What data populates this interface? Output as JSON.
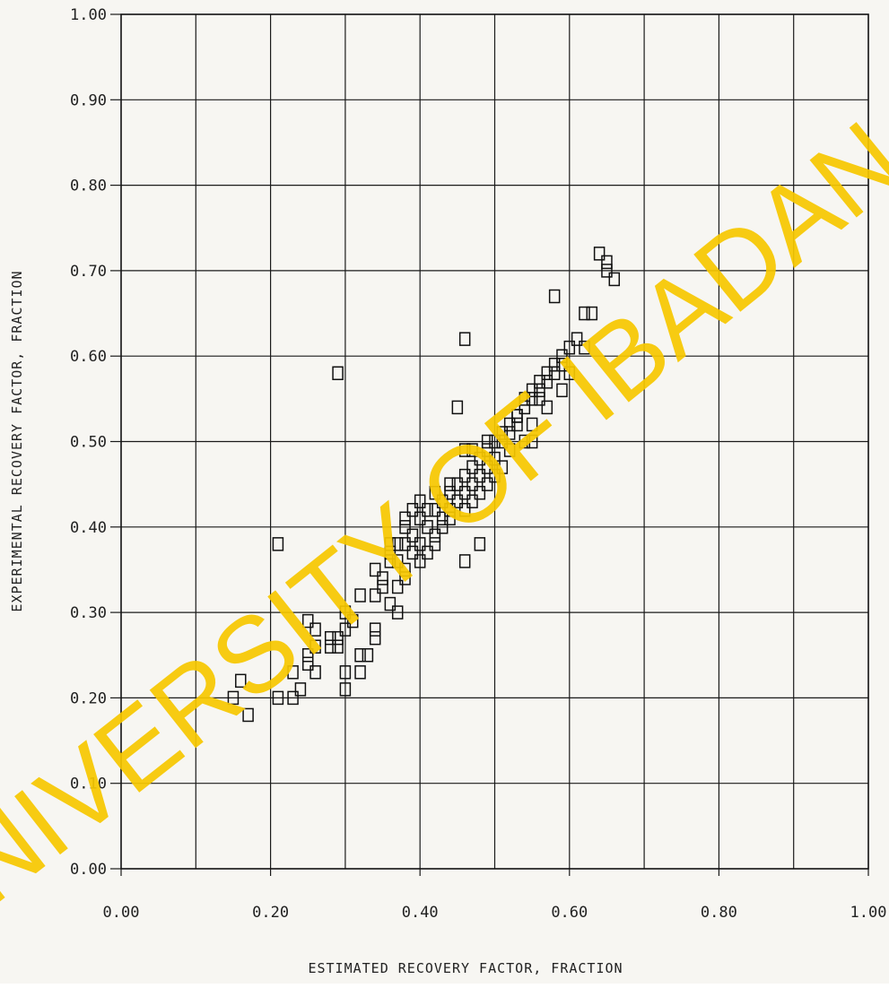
{
  "chart_data": {
    "type": "scatter",
    "xlabel": "ESTIMATED RECOVERY FACTOR, FRACTION",
    "ylabel": "EXPERIMENTAL RECOVERY FACTOR, FRACTION",
    "xlim": [
      0.0,
      1.0
    ],
    "ylim": [
      0.0,
      1.0
    ],
    "grid": true,
    "x_grid_step": 0.1,
    "y_grid_step": 0.1,
    "x_tick_labels": [
      "0.00",
      "0.20",
      "0.40",
      "0.60",
      "0.80",
      "1.00"
    ],
    "y_tick_labels": [
      "0.00",
      "0.10",
      "0.20",
      "0.30",
      "0.40",
      "0.50",
      "0.60",
      "0.70",
      "0.80",
      "0.90",
      "1.00"
    ],
    "marker": "square-open",
    "series": [
      {
        "points": [
          [
            0.15,
            0.2
          ],
          [
            0.16,
            0.22
          ],
          [
            0.17,
            0.18
          ],
          [
            0.21,
            0.2
          ],
          [
            0.21,
            0.38
          ],
          [
            0.23,
            0.2
          ],
          [
            0.24,
            0.21
          ],
          [
            0.23,
            0.23
          ],
          [
            0.25,
            0.24
          ],
          [
            0.25,
            0.25
          ],
          [
            0.26,
            0.23
          ],
          [
            0.26,
            0.26
          ],
          [
            0.25,
            0.29
          ],
          [
            0.26,
            0.28
          ],
          [
            0.28,
            0.26
          ],
          [
            0.29,
            0.26
          ],
          [
            0.28,
            0.27
          ],
          [
            0.29,
            0.27
          ],
          [
            0.3,
            0.21
          ],
          [
            0.3,
            0.23
          ],
          [
            0.3,
            0.28
          ],
          [
            0.3,
            0.3
          ],
          [
            0.31,
            0.29
          ],
          [
            0.32,
            0.23
          ],
          [
            0.32,
            0.25
          ],
          [
            0.33,
            0.25
          ],
          [
            0.34,
            0.27
          ],
          [
            0.34,
            0.28
          ],
          [
            0.32,
            0.32
          ],
          [
            0.34,
            0.32
          ],
          [
            0.34,
            0.35
          ],
          [
            0.35,
            0.33
          ],
          [
            0.35,
            0.34
          ],
          [
            0.36,
            0.36
          ],
          [
            0.36,
            0.37
          ],
          [
            0.37,
            0.36
          ],
          [
            0.37,
            0.38
          ],
          [
            0.38,
            0.35
          ],
          [
            0.38,
            0.38
          ],
          [
            0.38,
            0.4
          ],
          [
            0.39,
            0.37
          ],
          [
            0.39,
            0.39
          ],
          [
            0.4,
            0.38
          ],
          [
            0.4,
            0.41
          ],
          [
            0.41,
            0.4
          ],
          [
            0.41,
            0.42
          ],
          [
            0.42,
            0.39
          ],
          [
            0.42,
            0.42
          ],
          [
            0.43,
            0.41
          ],
          [
            0.43,
            0.43
          ],
          [
            0.44,
            0.42
          ],
          [
            0.44,
            0.44
          ],
          [
            0.45,
            0.43
          ],
          [
            0.45,
            0.45
          ],
          [
            0.46,
            0.44
          ],
          [
            0.46,
            0.46
          ],
          [
            0.47,
            0.45
          ],
          [
            0.47,
            0.47
          ],
          [
            0.48,
            0.46
          ],
          [
            0.48,
            0.48
          ],
          [
            0.49,
            0.47
          ],
          [
            0.49,
            0.49
          ],
          [
            0.5,
            0.48
          ],
          [
            0.5,
            0.5
          ],
          [
            0.51,
            0.5
          ],
          [
            0.52,
            0.51
          ],
          [
            0.52,
            0.52
          ],
          [
            0.53,
            0.52
          ],
          [
            0.53,
            0.53
          ],
          [
            0.54,
            0.54
          ],
          [
            0.55,
            0.55
          ],
          [
            0.55,
            0.56
          ],
          [
            0.56,
            0.55
          ],
          [
            0.56,
            0.57
          ],
          [
            0.57,
            0.58
          ],
          [
            0.58,
            0.58
          ],
          [
            0.58,
            0.59
          ],
          [
            0.59,
            0.6
          ],
          [
            0.6,
            0.61
          ],
          [
            0.61,
            0.62
          ],
          [
            0.36,
            0.31
          ],
          [
            0.37,
            0.33
          ],
          [
            0.38,
            0.34
          ],
          [
            0.4,
            0.36
          ],
          [
            0.41,
            0.37
          ],
          [
            0.42,
            0.38
          ],
          [
            0.43,
            0.4
          ],
          [
            0.44,
            0.41
          ],
          [
            0.46,
            0.42
          ],
          [
            0.47,
            0.43
          ],
          [
            0.48,
            0.44
          ],
          [
            0.49,
            0.45
          ],
          [
            0.5,
            0.46
          ],
          [
            0.51,
            0.47
          ],
          [
            0.52,
            0.49
          ],
          [
            0.54,
            0.5
          ],
          [
            0.55,
            0.52
          ],
          [
            0.57,
            0.54
          ],
          [
            0.59,
            0.56
          ],
          [
            0.6,
            0.58
          ],
          [
            0.36,
            0.38
          ],
          [
            0.38,
            0.41
          ],
          [
            0.39,
            0.42
          ],
          [
            0.4,
            0.43
          ],
          [
            0.42,
            0.44
          ],
          [
            0.44,
            0.45
          ],
          [
            0.46,
            0.49
          ],
          [
            0.47,
            0.49
          ],
          [
            0.49,
            0.5
          ],
          [
            0.51,
            0.51
          ],
          [
            0.53,
            0.53
          ],
          [
            0.54,
            0.55
          ],
          [
            0.56,
            0.56
          ],
          [
            0.57,
            0.57
          ],
          [
            0.59,
            0.59
          ],
          [
            0.37,
            0.3
          ],
          [
            0.46,
            0.36
          ],
          [
            0.48,
            0.38
          ],
          [
            0.45,
            0.54
          ],
          [
            0.46,
            0.62
          ],
          [
            0.29,
            0.58
          ],
          [
            0.55,
            0.5
          ],
          [
            0.58,
            0.67
          ],
          [
            0.62,
            0.65
          ],
          [
            0.63,
            0.65
          ],
          [
            0.62,
            0.61
          ],
          [
            0.64,
            0.72
          ],
          [
            0.65,
            0.71
          ],
          [
            0.65,
            0.7
          ],
          [
            0.66,
            0.69
          ]
        ]
      }
    ]
  },
  "watermark": {
    "text": "UNIVERSITY OF IBADAN LIBRARY",
    "color": "#f7c800"
  }
}
